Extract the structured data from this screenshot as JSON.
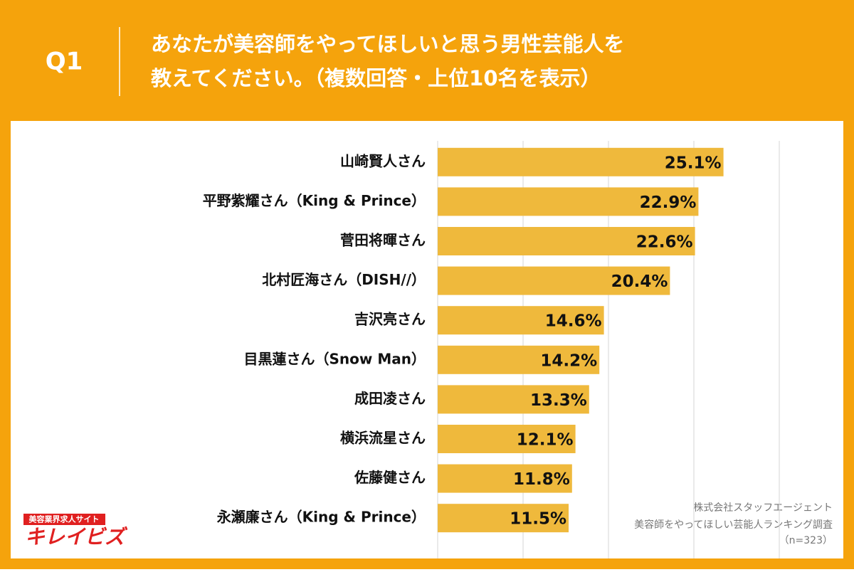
{
  "header": {
    "question": "Q1",
    "title_lines": [
      "あなたが美容師をやってほしいと思う男性芸能人を",
      "教えてください。（複数回答・上位10名を表示）"
    ]
  },
  "chart_data": {
    "type": "bar",
    "orientation": "horizontal",
    "categories": [
      "山崎賢人さん",
      "平野紫耀さん（King & Prince）",
      "菅田将暉さん",
      "北村匠海さん（DISH//）",
      "吉沢亮さん",
      "目黒蓮さん（Snow Man）",
      "成田凌さん",
      "横浜流星さん",
      "佐藤健さん",
      "永瀬廉さん（King & Prince）"
    ],
    "values": [
      25.1,
      22.9,
      22.6,
      20.4,
      14.6,
      14.2,
      13.3,
      12.1,
      11.8,
      11.5
    ],
    "value_labels": [
      "25.1%",
      "22.9%",
      "22.6%",
      "20.4%",
      "14.6%",
      "14.2%",
      "13.3%",
      "12.1%",
      "11.8%",
      "11.5%"
    ],
    "color": "#efb93c",
    "xlim": [
      0,
      30
    ],
    "xticks": [
      0,
      7.5,
      15,
      22.5,
      30
    ],
    "grid": true,
    "show_tick_labels": false
  },
  "notes": [
    "株式会社スタッフエージェント",
    "美容師をやってほしい芸能人ランキング調査",
    "（n=323）"
  ],
  "logo": {
    "tagline": "美容業界求人サイト",
    "name": "キレイビズ"
  }
}
